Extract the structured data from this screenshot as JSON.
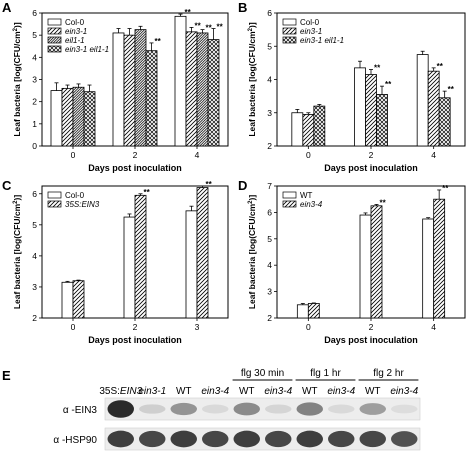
{
  "figure": {
    "panels": [
      "A",
      "B",
      "C",
      "D"
    ],
    "ylabel_parts": [
      "Leaf bacteria [log(CFU/cm",
      "2",
      ")]"
    ],
    "xlabel": "Days post inoculation"
  },
  "chart_data": [
    {
      "panel": "A",
      "type": "bar",
      "categories": [
        "0",
        "2",
        "4"
      ],
      "ylim": [
        0,
        6
      ],
      "yticks": [
        0,
        1,
        2,
        3,
        4,
        5,
        6
      ],
      "xlabel": "Days post inoculation",
      "ylabel": "Leaf bacteria [log(CFU/cm2)]",
      "legend_position": "top-left",
      "series": [
        {
          "name": "Col-0",
          "italic": false,
          "pattern": "none",
          "values": [
            2.5,
            5.1,
            5.85
          ],
          "errors": [
            0.35,
            0.2,
            0.1
          ]
        },
        {
          "name": "ein3-1",
          "italic": true,
          "pattern": "hatch",
          "values": [
            2.6,
            5.0,
            5.15
          ],
          "errors": [
            0.15,
            0.3,
            0.2
          ]
        },
        {
          "name": "eil1-1",
          "italic": true,
          "pattern": "dense-hatch",
          "values": [
            2.65,
            5.25,
            5.1
          ],
          "errors": [
            0.15,
            0.15,
            0.15
          ]
        },
        {
          "name": "ein3-1 eil1-1",
          "italic": true,
          "pattern": "crosshatch",
          "values": [
            2.45,
            4.3,
            4.8
          ],
          "errors": [
            0.3,
            0.35,
            0.5
          ]
        }
      ],
      "annotations": [
        {
          "category": "2",
          "series": 3,
          "text": "**"
        },
        {
          "category": "4",
          "series": 0,
          "text": "**"
        },
        {
          "category": "4",
          "series": 1,
          "text": "**"
        },
        {
          "category": "4",
          "series": 2,
          "text": "**"
        },
        {
          "category": "4",
          "series": 3,
          "text": "**"
        }
      ]
    },
    {
      "panel": "B",
      "type": "bar",
      "categories": [
        "0",
        "2",
        "4"
      ],
      "ylim": [
        2,
        6
      ],
      "yticks": [
        2,
        3,
        4,
        5,
        6
      ],
      "xlabel": "Days post inoculation",
      "ylabel": "Leaf bacteria [log(CFU/cm2)]",
      "legend_position": "top-left",
      "series": [
        {
          "name": "Col-0",
          "italic": false,
          "pattern": "none",
          "values": [
            3.0,
            4.35,
            4.75
          ],
          "errors": [
            0.1,
            0.2,
            0.1
          ]
        },
        {
          "name": "ein3-1",
          "italic": true,
          "pattern": "hatch",
          "values": [
            2.95,
            4.15,
            4.25
          ],
          "errors": [
            0.05,
            0.15,
            0.1
          ]
        },
        {
          "name": "ein3-1 eil1-1",
          "italic": true,
          "pattern": "crosshatch",
          "values": [
            3.2,
            3.55,
            3.45
          ],
          "errors": [
            0.05,
            0.25,
            0.2
          ]
        }
      ],
      "annotations": [
        {
          "category": "2",
          "series": 1,
          "text": "**"
        },
        {
          "category": "2",
          "series": 2,
          "text": "**"
        },
        {
          "category": "4",
          "series": 1,
          "text": "**"
        },
        {
          "category": "4",
          "series": 2,
          "text": "**"
        }
      ]
    },
    {
      "panel": "C",
      "type": "bar",
      "categories": [
        "0",
        "2",
        "3"
      ],
      "ylim": [
        2,
        6.25
      ],
      "yticks": [
        2,
        3,
        4,
        5,
        6
      ],
      "xlabel": "Days post inoculation",
      "ylabel": "Leaf bacteria [log(CFU/cm2)]",
      "legend_position": "top-left",
      "series": [
        {
          "name": "Col-0",
          "italic": false,
          "pattern": "none",
          "values": [
            3.15,
            5.25,
            5.45
          ],
          "errors": [
            0.03,
            0.1,
            0.15
          ]
        },
        {
          "name": "35S:EIN3",
          "italic": true,
          "pattern": "hatch",
          "values": [
            3.2,
            5.95,
            6.2
          ],
          "errors": [
            0.02,
            0.05,
            0.05
          ]
        }
      ],
      "annotations": [
        {
          "category": "2",
          "series": 1,
          "text": "**"
        },
        {
          "category": "3",
          "series": 1,
          "text": "**"
        }
      ]
    },
    {
      "panel": "D",
      "type": "bar",
      "categories": [
        "0",
        "2",
        "4"
      ],
      "ylim": [
        2,
        7
      ],
      "yticks": [
        2,
        3,
        4,
        5,
        6,
        7
      ],
      "xlabel": "Days post inoculation",
      "ylabel": "Leaf bacteria [log(CFU/cm2)]",
      "legend_position": "top-left",
      "series": [
        {
          "name": "WT",
          "italic": false,
          "pattern": "none",
          "values": [
            2.5,
            5.9,
            5.75
          ],
          "errors": [
            0.05,
            0.08,
            0.05
          ]
        },
        {
          "name": "ein3-4",
          "italic": true,
          "pattern": "hatch",
          "values": [
            2.55,
            6.25,
            6.5
          ],
          "errors": [
            0.02,
            0.05,
            0.35
          ]
        }
      ],
      "annotations": [
        {
          "category": "2",
          "series": 1,
          "text": "**"
        },
        {
          "category": "4",
          "series": 1,
          "text": "**"
        }
      ]
    }
  ],
  "blot": {
    "panel": "E",
    "lanes": [
      {
        "label": "35S:",
        "label_italic_part": "EIN3"
      },
      {
        "label": "",
        "label_italic_part": "ein3-1"
      },
      {
        "label": "WT",
        "label_italic_part": ""
      },
      {
        "label": "",
        "label_italic_part": "ein3-4"
      },
      {
        "label": "WT",
        "label_italic_part": ""
      },
      {
        "label": "",
        "label_italic_part": "ein3-4"
      },
      {
        "label": "WT",
        "label_italic_part": ""
      },
      {
        "label": "",
        "label_italic_part": "ein3-4"
      },
      {
        "label": "WT",
        "label_italic_part": ""
      },
      {
        "label": "",
        "label_italic_part": "ein3-4"
      }
    ],
    "treatments": [
      {
        "label": "flg 30 min",
        "lanes": [
          4,
          5
        ]
      },
      {
        "label": "flg 1 hr",
        "lanes": [
          6,
          7
        ]
      },
      {
        "label": "flg 2 hr",
        "lanes": [
          8,
          9
        ]
      }
    ],
    "rows": [
      {
        "label": "α -EIN3",
        "intensity": [
          1.0,
          0.15,
          0.45,
          0.1,
          0.5,
          0.12,
          0.55,
          0.1,
          0.4,
          0.08
        ]
      },
      {
        "label": "α -HSP90",
        "intensity": [
          0.9,
          0.85,
          0.9,
          0.85,
          0.9,
          0.85,
          0.9,
          0.85,
          0.85,
          0.8
        ]
      }
    ]
  }
}
